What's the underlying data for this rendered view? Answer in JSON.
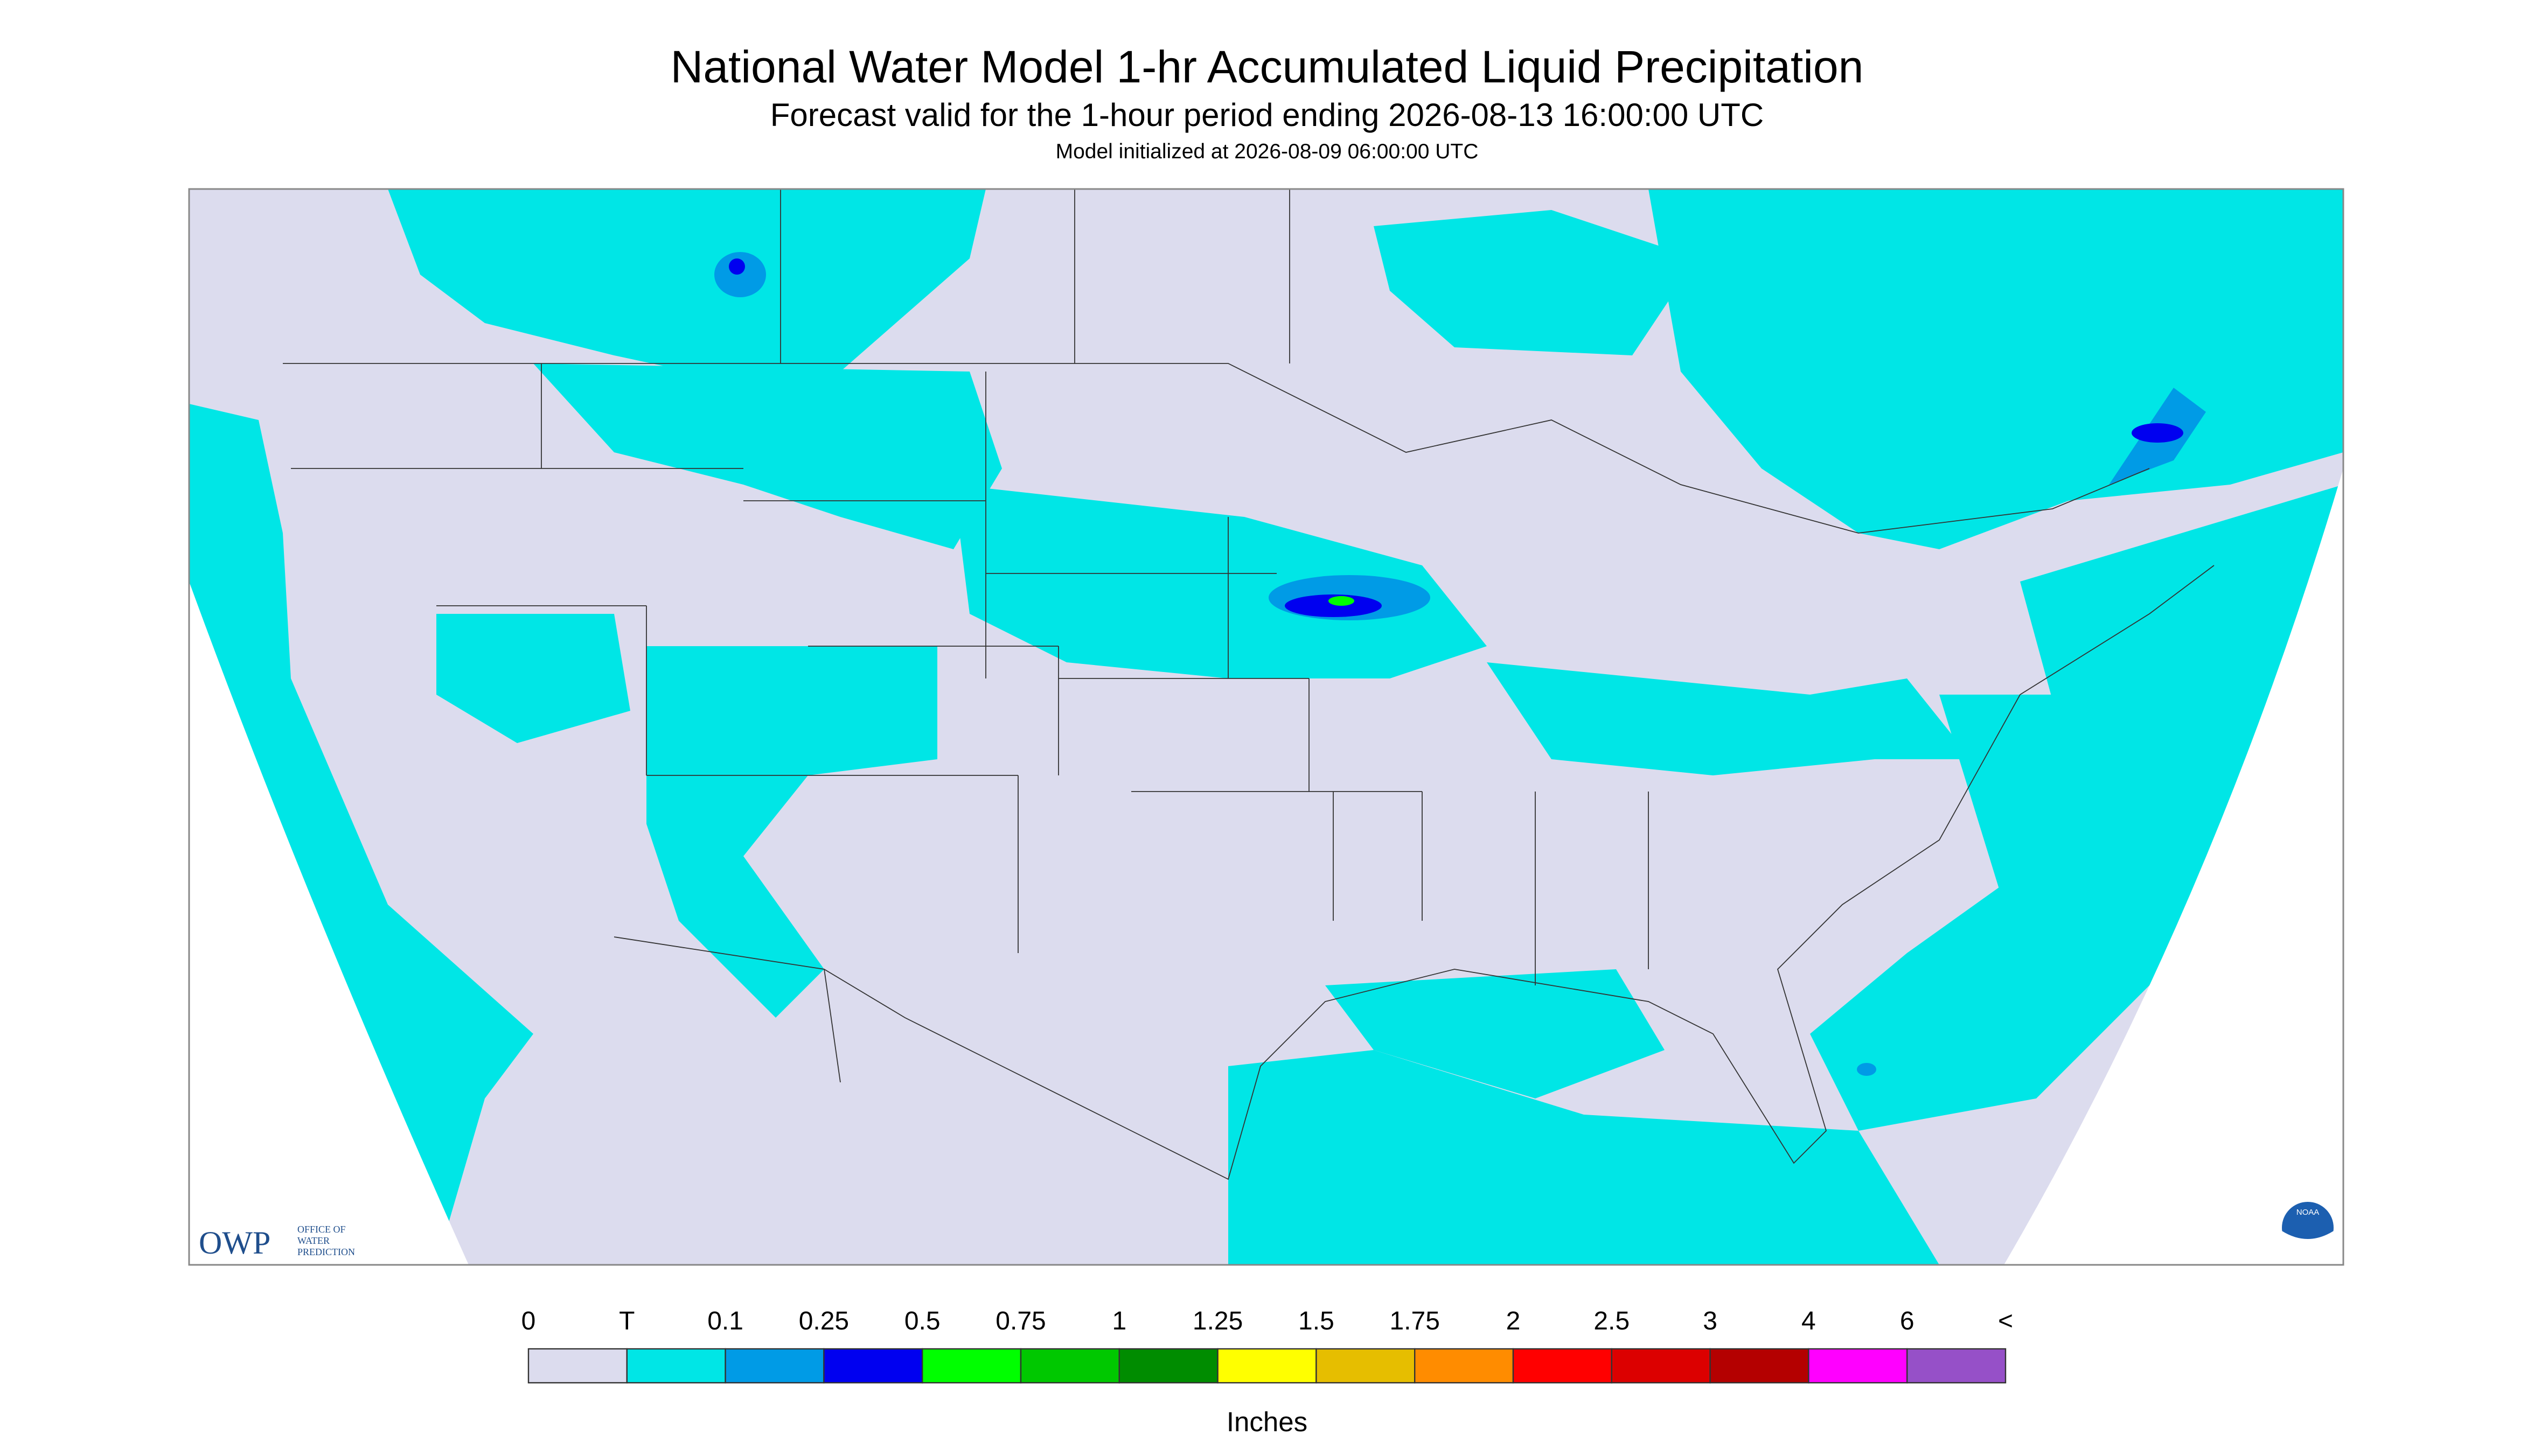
{
  "header": {
    "title": "National Water Model 1-hr Accumulated Liquid Precipitation",
    "subtitle": "Forecast valid for the 1-hour period ending 2026-08-13 16:00:00 UTC",
    "note": "Model initialized at 2026-08-09 06:00:00 UTC"
  },
  "legend": {
    "labels": [
      "0",
      "T",
      "0.1",
      "0.25",
      "0.5",
      "0.75",
      "1",
      "1.25",
      "1.5",
      "1.75",
      "2",
      "2.5",
      "3",
      "4",
      "6",
      "<"
    ],
    "colors": [
      "#dcdcee",
      "#00e6e6",
      "#009be6",
      "#0000f0",
      "#00ff00",
      "#00c800",
      "#008c00",
      "#ffff00",
      "#e6be00",
      "#ff8c00",
      "#ff0000",
      "#dc0000",
      "#b40000",
      "#ff00ff",
      "#9650c8"
    ],
    "unit": "Inches"
  },
  "logos": {
    "owp": "OWP",
    "owp_line1": "OFFICE OF",
    "owp_line2": "WATER",
    "owp_line3": "PREDICTION",
    "noaa": "NOAA"
  }
}
